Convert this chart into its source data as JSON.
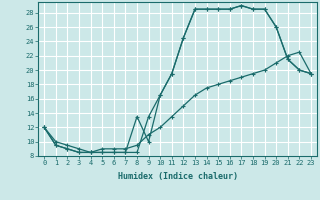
{
  "bg_color": "#cce8e8",
  "grid_color": "#ffffff",
  "line_color": "#1a6b6b",
  "xlabel": "Humidex (Indice chaleur)",
  "xlim": [
    -0.5,
    23.5
  ],
  "ylim": [
    8,
    29.5
  ],
  "xticks": [
    0,
    1,
    2,
    3,
    4,
    5,
    6,
    7,
    8,
    9,
    10,
    11,
    12,
    13,
    14,
    15,
    16,
    17,
    18,
    19,
    20,
    21,
    22,
    23
  ],
  "yticks": [
    8,
    10,
    12,
    14,
    16,
    18,
    20,
    22,
    24,
    26,
    28
  ],
  "line1_x": [
    0,
    1,
    2,
    3,
    4,
    5,
    6,
    7,
    8,
    9,
    10,
    11,
    12,
    13,
    14,
    15,
    16,
    17,
    18,
    19,
    20,
    21,
    22,
    23
  ],
  "line1_y": [
    12,
    9.5,
    9,
    8.5,
    8.5,
    8.5,
    8.5,
    8.5,
    8.5,
    13.5,
    16.5,
    19.5,
    24.5,
    28.5,
    28.5,
    28.5,
    28.5,
    29,
    28.5,
    28.5,
    26,
    21.5,
    20,
    19.5
  ],
  "line2_x": [
    0,
    1,
    2,
    3,
    4,
    5,
    6,
    7,
    8,
    9,
    10,
    11,
    12,
    13,
    14,
    15,
    16,
    17,
    18,
    19,
    20,
    21,
    22,
    23
  ],
  "line2_y": [
    12,
    9.5,
    9,
    8.5,
    8.5,
    8.5,
    8.5,
    8.5,
    13.5,
    10,
    16.5,
    19.5,
    24.5,
    28.5,
    28.5,
    28.5,
    28.5,
    29,
    28.5,
    28.5,
    26,
    21.5,
    20,
    19.5
  ],
  "line3_x": [
    0,
    1,
    2,
    3,
    4,
    5,
    6,
    7,
    8,
    9,
    10,
    11,
    12,
    13,
    14,
    15,
    16,
    17,
    18,
    19,
    20,
    21,
    22,
    23
  ],
  "line3_y": [
    12,
    10,
    9.5,
    9,
    8.5,
    9,
    9,
    9,
    9.5,
    11,
    12,
    13.5,
    15,
    16.5,
    17.5,
    18,
    18.5,
    19,
    19.5,
    20,
    21,
    22,
    22.5,
    19.5
  ]
}
